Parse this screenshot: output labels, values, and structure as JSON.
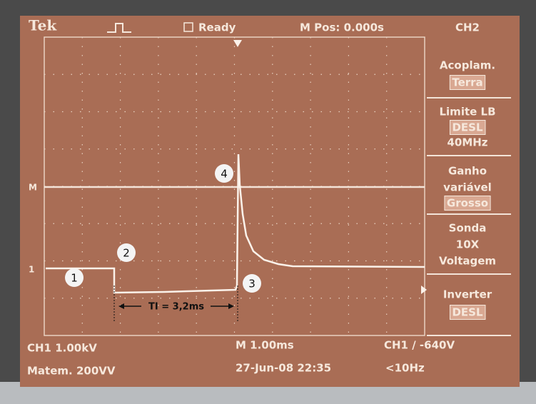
{
  "header": {
    "brand": "Tek",
    "status": "Ready",
    "mpos": "M Pos: 0.000s",
    "channel": "CH2"
  },
  "menu": [
    {
      "lines": [
        {
          "text": "Acoplam.",
          "boxed": false
        },
        {
          "text": "Terra",
          "boxed": true
        }
      ]
    },
    {
      "lines": [
        {
          "text": "Limite LB",
          "boxed": false
        },
        {
          "text": "DESL",
          "boxed": true
        },
        {
          "text": "40MHz",
          "boxed": false
        }
      ]
    },
    {
      "lines": [
        {
          "text": "Ganho",
          "boxed": false
        },
        {
          "text": "variável",
          "boxed": false
        },
        {
          "text": "Grosso",
          "boxed": true
        }
      ]
    },
    {
      "lines": [
        {
          "text": "Sonda",
          "boxed": false
        },
        {
          "text": "10X",
          "boxed": false
        },
        {
          "text": "Voltagem",
          "boxed": false
        }
      ]
    },
    {
      "lines": [
        {
          "text": "Inverter",
          "boxed": false
        },
        {
          "text": "DESL",
          "boxed": true
        }
      ]
    }
  ],
  "footer": {
    "ch1": "CH1 1.00kV",
    "timebase": "M 1.00ms",
    "trigger": "CH1 / -640V",
    "math": "Matem. 200VV",
    "date": "27-Jun-08 22:35",
    "freq": "<10Hz"
  },
  "markers": {
    "m": "M",
    "ch1": "1"
  },
  "annotations": {
    "a1": "1",
    "a2": "2",
    "a3": "3",
    "a4": "4",
    "interval": "TI = 3,2ms"
  }
}
